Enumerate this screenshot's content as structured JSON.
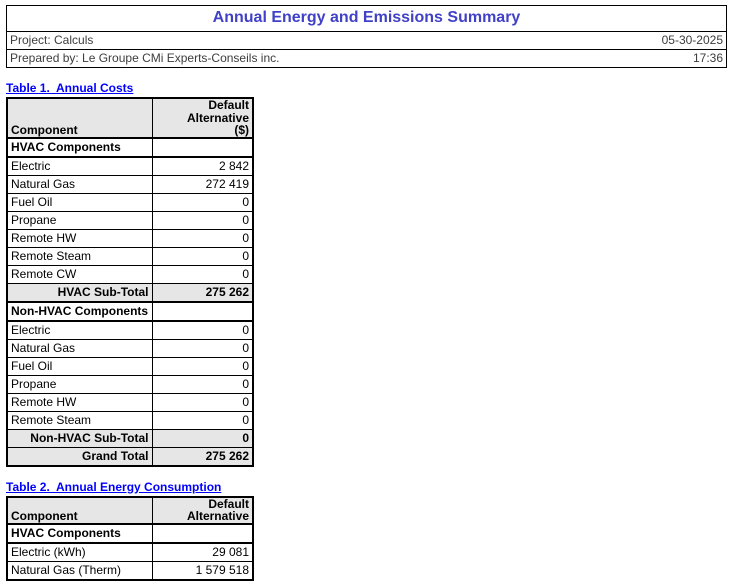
{
  "header": {
    "title": "Annual Energy and Emissions Summary",
    "project": "Project: Calculs",
    "prepared_by": "Prepared by: Le Groupe CMi Experts-Conseils inc.",
    "date": "05-30-2025",
    "time": "17:36"
  },
  "colors": {
    "title": "#4141c8",
    "table_label": "#0000ff",
    "header_fill": "#e6e6e6",
    "border": "#000000"
  },
  "tables": [
    {
      "label": "Table 1.  Annual Costs",
      "header": {
        "component": "Component",
        "alternative_lines": [
          "Default",
          "Alternative",
          "($)"
        ]
      },
      "rows": [
        {
          "type": "section",
          "label": "HVAC Components",
          "value": ""
        },
        {
          "type": "data",
          "label": "Electric",
          "value": "2 842"
        },
        {
          "type": "data",
          "label": "Natural Gas",
          "value": "272 419"
        },
        {
          "type": "data",
          "label": "Fuel Oil",
          "value": "0"
        },
        {
          "type": "data",
          "label": "Propane",
          "value": "0"
        },
        {
          "type": "data",
          "label": "Remote HW",
          "value": "0"
        },
        {
          "type": "data",
          "label": "Remote Steam",
          "value": "0"
        },
        {
          "type": "data",
          "label": "Remote CW",
          "value": "0"
        },
        {
          "type": "subtotal",
          "label": "HVAC Sub-Total",
          "value": "275 262"
        },
        {
          "type": "section",
          "label": "Non-HVAC Components",
          "value": ""
        },
        {
          "type": "data",
          "label": "Electric",
          "value": "0"
        },
        {
          "type": "data",
          "label": "Natural Gas",
          "value": "0"
        },
        {
          "type": "data",
          "label": "Fuel Oil",
          "value": "0"
        },
        {
          "type": "data",
          "label": "Propane",
          "value": "0"
        },
        {
          "type": "data",
          "label": "Remote HW",
          "value": "0"
        },
        {
          "type": "data",
          "label": "Remote Steam",
          "value": "0"
        },
        {
          "type": "subtotal",
          "label": "Non-HVAC Sub-Total",
          "value": "0"
        },
        {
          "type": "subtotal",
          "label": "Grand Total",
          "value": "275 262"
        }
      ]
    },
    {
      "label": "Table 2.  Annual Energy Consumption",
      "header": {
        "component": "Component",
        "alternative_lines": [
          "Default",
          "Alternative"
        ]
      },
      "rows": [
        {
          "type": "section",
          "label": "HVAC Components",
          "value": ""
        },
        {
          "type": "data",
          "label": "Electric (kWh)",
          "value": "29 081"
        },
        {
          "type": "data",
          "label": "Natural Gas (Therm)",
          "value": "1 579 518"
        }
      ]
    }
  ]
}
